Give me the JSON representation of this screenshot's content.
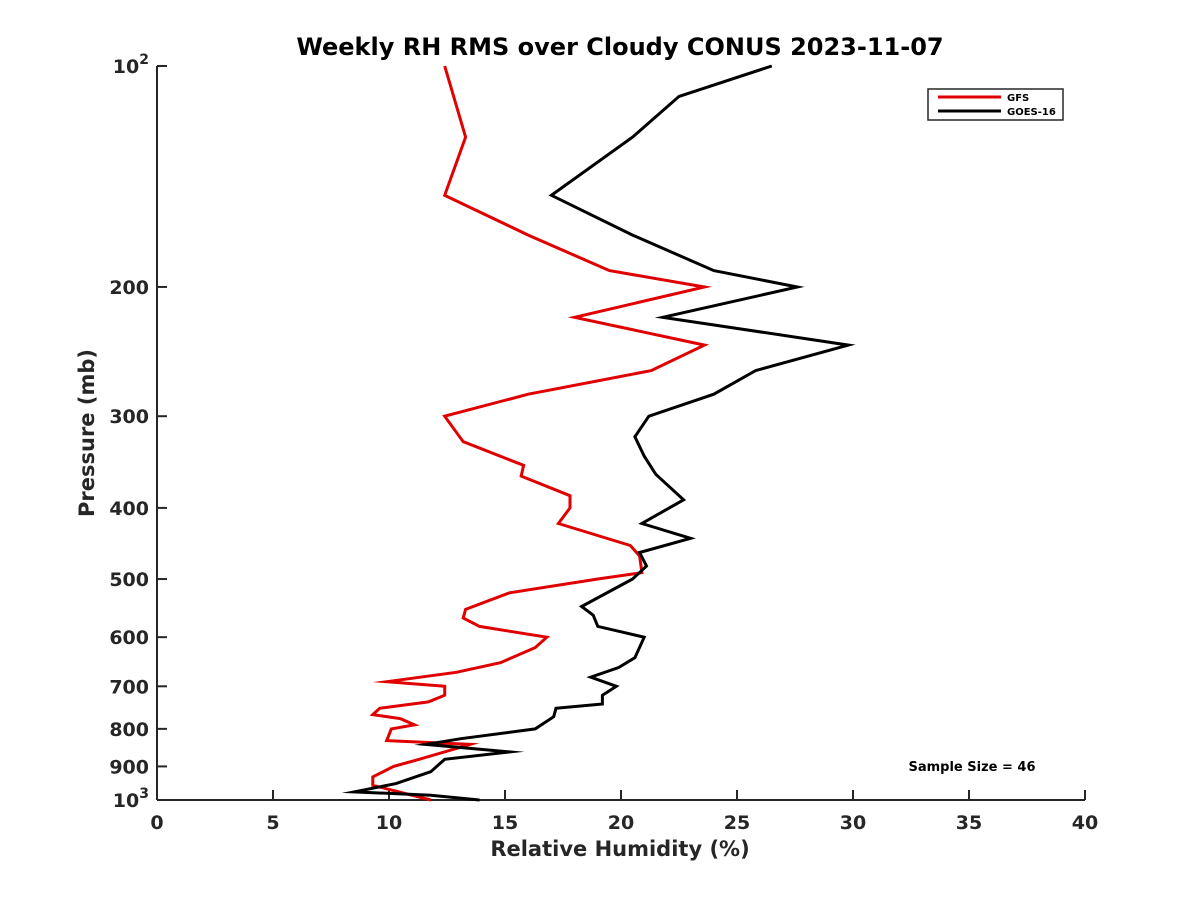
{
  "chart_data": {
    "type": "line",
    "title": "Weekly RH RMS over Cloudy CONUS 2023-11-07",
    "xlabel": "Relative Humidity (%)",
    "ylabel": "Pressure (mb)",
    "xlim": [
      0,
      40
    ],
    "ylim": [
      100,
      1000
    ],
    "y_scale": "log",
    "y_reversed": true,
    "xticks": [
      0,
      5,
      10,
      15,
      20,
      25,
      30,
      35,
      40
    ],
    "yticks": [
      {
        "value": 100,
        "base": "10",
        "exp": "2"
      },
      {
        "value": 200,
        "label": "200"
      },
      {
        "value": 300,
        "label": "300"
      },
      {
        "value": 400,
        "label": "400"
      },
      {
        "value": 500,
        "label": "500"
      },
      {
        "value": 600,
        "label": "600"
      },
      {
        "value": 700,
        "label": "700"
      },
      {
        "value": 800,
        "label": "800"
      },
      {
        "value": 900,
        "label": "900"
      },
      {
        "value": 1000,
        "base": "10",
        "exp": "3"
      }
    ],
    "grid": false,
    "legend_position": "top-right",
    "annotation": "Sample Size = 46",
    "series": [
      {
        "name": "GFS",
        "color": "#e00000",
        "points": [
          [
            12.4,
            100
          ],
          [
            13.3,
            125
          ],
          [
            12.4,
            150
          ],
          [
            16.0,
            170
          ],
          [
            19.5,
            190
          ],
          [
            23.6,
            200
          ],
          [
            18.0,
            220
          ],
          [
            23.6,
            240
          ],
          [
            21.3,
            260
          ],
          [
            16.0,
            280
          ],
          [
            12.4,
            300
          ],
          [
            13.2,
            325
          ],
          [
            15.8,
            350
          ],
          [
            15.7,
            362
          ],
          [
            17.8,
            385
          ],
          [
            17.8,
            400
          ],
          [
            17.3,
            420
          ],
          [
            20.4,
            450
          ],
          [
            20.8,
            465
          ],
          [
            20.9,
            490
          ],
          [
            19.0,
            500
          ],
          [
            15.2,
            522
          ],
          [
            13.3,
            550
          ],
          [
            13.2,
            565
          ],
          [
            13.9,
            580
          ],
          [
            16.8,
            600
          ],
          [
            16.3,
            620
          ],
          [
            14.8,
            650
          ],
          [
            12.9,
            670
          ],
          [
            9.9,
            690
          ],
          [
            12.4,
            700
          ],
          [
            12.4,
            720
          ],
          [
            11.7,
            735
          ],
          [
            9.6,
            750
          ],
          [
            9.3,
            765
          ],
          [
            10.5,
            775
          ],
          [
            11.1,
            790
          ],
          [
            10.1,
            800
          ],
          [
            9.9,
            830
          ],
          [
            13.5,
            840
          ],
          [
            11.3,
            880
          ],
          [
            10.2,
            900
          ],
          [
            9.3,
            930
          ],
          [
            9.3,
            955
          ],
          [
            11.8,
            1000
          ]
        ]
      },
      {
        "name": "GOES-16",
        "color": "#000000",
        "points": [
          [
            26.5,
            100
          ],
          [
            22.5,
            110
          ],
          [
            20.5,
            125
          ],
          [
            17.0,
            150
          ],
          [
            20.5,
            170
          ],
          [
            24.0,
            190
          ],
          [
            27.6,
            200
          ],
          [
            21.8,
            220
          ],
          [
            29.8,
            240
          ],
          [
            25.8,
            260
          ],
          [
            24.0,
            280
          ],
          [
            21.2,
            300
          ],
          [
            20.6,
            320
          ],
          [
            21.0,
            340
          ],
          [
            21.5,
            360
          ],
          [
            22.7,
            390
          ],
          [
            20.9,
            420
          ],
          [
            23.0,
            440
          ],
          [
            20.8,
            460
          ],
          [
            21.1,
            480
          ],
          [
            20.5,
            500
          ],
          [
            18.3,
            545
          ],
          [
            18.8,
            560
          ],
          [
            19.0,
            580
          ],
          [
            21.0,
            600
          ],
          [
            20.6,
            640
          ],
          [
            19.9,
            660
          ],
          [
            18.7,
            680
          ],
          [
            19.8,
            700
          ],
          [
            19.2,
            720
          ],
          [
            19.2,
            740
          ],
          [
            17.2,
            750
          ],
          [
            17.1,
            770
          ],
          [
            16.3,
            800
          ],
          [
            13.1,
            825
          ],
          [
            11.6,
            840
          ],
          [
            15.2,
            860
          ],
          [
            12.4,
            880
          ],
          [
            11.8,
            915
          ],
          [
            10.3,
            950
          ],
          [
            8.5,
            975
          ],
          [
            11.8,
            985
          ],
          [
            13.9,
            1000
          ]
        ]
      }
    ]
  }
}
